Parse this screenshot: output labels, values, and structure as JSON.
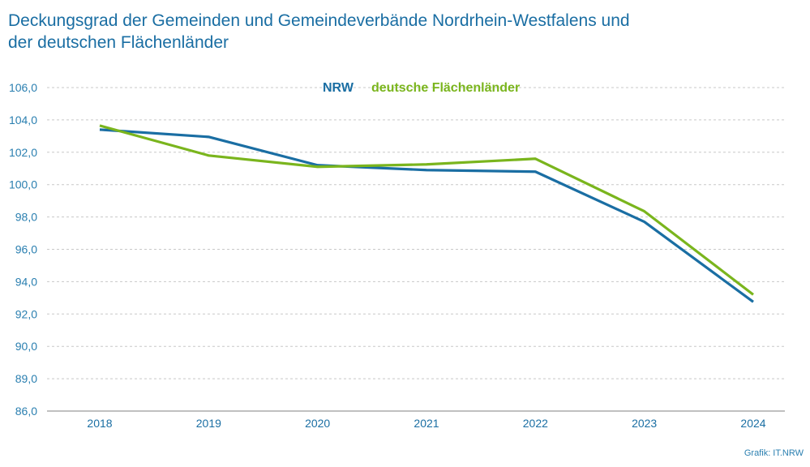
{
  "chart_data": {
    "type": "line",
    "title": [
      "Deckungsgrad der Gemeinden und Gemeindeverbände Nordrhein-Westfalens und",
      "der deutschen Flächenländer"
    ],
    "xlabel": "",
    "ylabel": "",
    "categories": [
      "2018",
      "2019",
      "2020",
      "2021",
      "2022",
      "2023",
      "2024"
    ],
    "y_tick_labels": [
      "86,0",
      "89,0",
      "90,0",
      "92,0",
      "94,0",
      "96,0",
      "98,0",
      "100,0",
      "102,0",
      "104,0",
      "106,0"
    ],
    "ylim": [
      86,
      106
    ],
    "grid": true,
    "legend_position": "top-center",
    "series": [
      {
        "name": "NRW",
        "color": "#1a6ea3",
        "values": [
          103.4,
          102.95,
          101.2,
          100.9,
          100.8,
          97.7,
          92.75
        ]
      },
      {
        "name": "deutsche Flächenländer",
        "color": "#7ab51d",
        "values": [
          103.65,
          101.8,
          101.1,
          101.25,
          101.6,
          98.35,
          93.2
        ]
      }
    ],
    "source": "Grafik: IT.NRW"
  }
}
